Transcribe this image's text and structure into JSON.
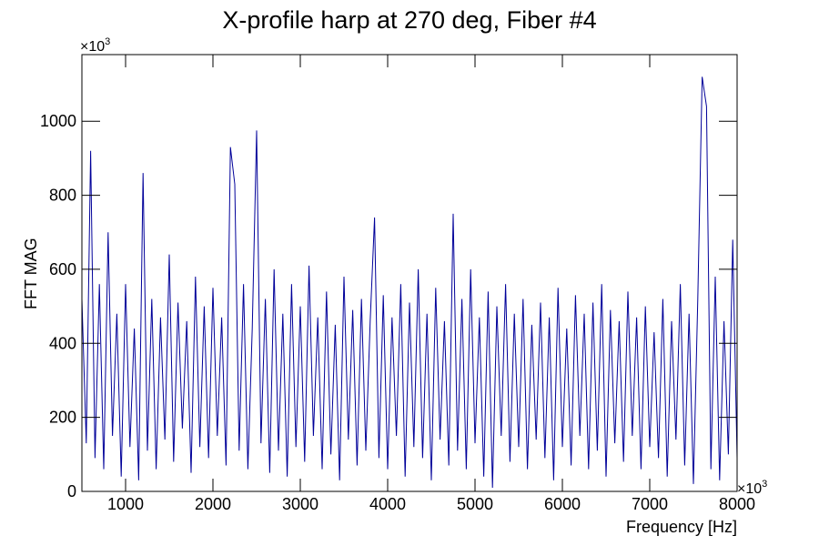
{
  "chart_data": {
    "type": "line",
    "title": "X-profile harp at 270 deg, Fiber #4",
    "x_label": "Frequency [Hz]",
    "y_label": "FFT MAG",
    "x_multiplier": {
      "base": "×10",
      "exponent": "3"
    },
    "y_multiplier": {
      "base": "×10",
      "exponent": "3"
    },
    "xlim": [
      500,
      8000
    ],
    "ylim": [
      0,
      1180
    ],
    "xticks": [
      1000,
      2000,
      3000,
      4000,
      5000,
      6000,
      7000,
      8000
    ],
    "yticks": [
      0,
      200,
      400,
      600,
      800,
      1000
    ],
    "grid": false,
    "x": [
      500,
      550,
      600,
      650,
      700,
      750,
      800,
      850,
      900,
      950,
      1000,
      1050,
      1100,
      1150,
      1200,
      1250,
      1300,
      1350,
      1400,
      1450,
      1500,
      1550,
      1600,
      1650,
      1700,
      1750,
      1800,
      1850,
      1900,
      1950,
      2000,
      2050,
      2100,
      2150,
      2200,
      2250,
      2300,
      2350,
      2400,
      2450,
      2500,
      2550,
      2600,
      2650,
      2700,
      2750,
      2800,
      2850,
      2900,
      2950,
      3000,
      3050,
      3100,
      3150,
      3200,
      3250,
      3300,
      3350,
      3400,
      3450,
      3500,
      3550,
      3600,
      3650,
      3700,
      3750,
      3800,
      3850,
      3900,
      3950,
      4000,
      4050,
      4100,
      4150,
      4200,
      4250,
      4300,
      4350,
      4400,
      4450,
      4500,
      4550,
      4600,
      4650,
      4700,
      4750,
      4800,
      4850,
      4900,
      4950,
      5000,
      5050,
      5100,
      5150,
      5200,
      5250,
      5300,
      5350,
      5400,
      5450,
      5500,
      5550,
      5600,
      5650,
      5700,
      5750,
      5800,
      5850,
      5900,
      5950,
      6000,
      6050,
      6100,
      6150,
      6200,
      6250,
      6300,
      6350,
      6400,
      6450,
      6500,
      6550,
      6600,
      6650,
      6700,
      6750,
      6800,
      6850,
      6900,
      6950,
      7000,
      7050,
      7100,
      7150,
      7200,
      7250,
      7300,
      7350,
      7400,
      7450,
      7500,
      7550,
      7600,
      7650,
      7700,
      7750,
      7800,
      7850,
      7900,
      7950,
      8000
    ],
    "series": [
      {
        "name": "FFT MAG",
        "color": "#000099",
        "values": [
          520,
          130,
          920,
          90,
          560,
          60,
          700,
          150,
          480,
          40,
          560,
          120,
          440,
          30,
          860,
          110,
          520,
          60,
          470,
          140,
          640,
          80,
          510,
          170,
          460,
          50,
          580,
          120,
          500,
          90,
          550,
          150,
          470,
          70,
          930,
          830,
          110,
          560,
          60,
          440,
          975,
          130,
          520,
          50,
          600,
          110,
          480,
          40,
          560,
          120,
          500,
          80,
          610,
          150,
          470,
          60,
          540,
          100,
          450,
          30,
          580,
          140,
          490,
          70,
          520,
          110,
          460,
          740,
          90,
          530,
          60,
          470,
          150,
          560,
          40,
          510,
          120,
          600,
          90,
          480,
          30,
          550,
          140,
          460,
          70,
          750,
          110,
          520,
          60,
          600,
          130,
          470,
          40,
          540,
          10,
          500,
          150,
          560,
          80,
          480,
          120,
          520,
          60,
          450,
          140,
          510,
          90,
          470,
          30,
          550,
          120,
          440,
          70,
          530,
          150,
          480,
          60,
          510,
          110,
          560,
          40,
          490,
          130,
          460,
          80,
          540,
          150,
          470,
          60,
          500,
          120,
          430,
          90,
          520,
          40,
          460,
          140,
          560,
          70,
          480,
          20,
          520,
          1120,
          1040,
          60,
          580,
          30,
          460,
          100,
          680,
          90
        ]
      }
    ]
  }
}
